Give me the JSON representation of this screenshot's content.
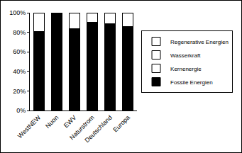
{
  "chart_data": {
    "type": "bar",
    "stacked": true,
    "grid": false,
    "legend": "right",
    "categories": [
      "WestNEW",
      "Nuon",
      "EWV",
      "Naturstrom",
      "Deutschland",
      "Europa"
    ],
    "series": [
      {
        "name": "Fossile Energien",
        "color": "#000000",
        "values": [
          81,
          100,
          84,
          90,
          89,
          86
        ]
      },
      {
        "name": "Kernenergie",
        "color": "#ffffff",
        "values": [
          0,
          0,
          0,
          0,
          0,
          0
        ]
      },
      {
        "name": "Wasserkraft",
        "color": "#ffffff",
        "values": [
          0,
          0,
          0,
          0,
          0,
          0
        ]
      },
      {
        "name": "Regenerative Energien",
        "color": "#ffffff",
        "values": [
          19,
          0,
          16,
          10,
          11,
          14
        ]
      }
    ],
    "ylim": [
      0,
      100
    ],
    "yticks": [
      {
        "value": 0,
        "label": "0%"
      },
      {
        "value": 20,
        "label": "20%"
      },
      {
        "value": 40,
        "label": "40%"
      },
      {
        "value": 60,
        "label": "60%"
      },
      {
        "value": 80,
        "label": "80%"
      },
      {
        "value": 100,
        "label": "100%"
      }
    ]
  }
}
